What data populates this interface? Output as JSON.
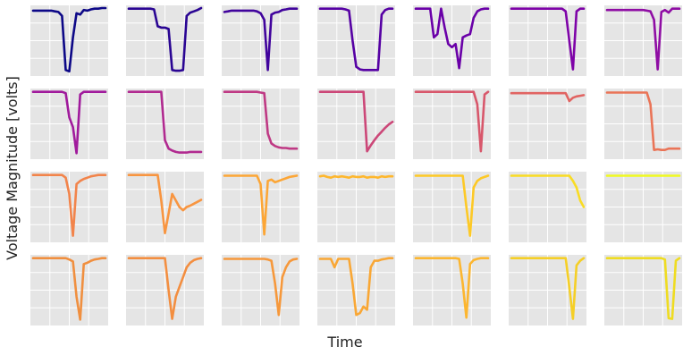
{
  "chart_data": {
    "type": "line",
    "xlabel": "Time",
    "ylabel": "Voltage Magnitude [volts]",
    "rows": 4,
    "cols": 7,
    "panel_background": "#e5e5e5",
    "grid_color": "#ffffff",
    "grid": true,
    "x": [
      0.0,
      0.05,
      0.1,
      0.15,
      0.2,
      0.25,
      0.3,
      0.35,
      0.4,
      0.45,
      0.5,
      0.55,
      0.6,
      0.65,
      0.7,
      0.75,
      0.8,
      0.85,
      0.9,
      0.95,
      1.0
    ],
    "ylim": [
      0,
      1
    ],
    "series": [
      {
        "color": "#0d0887",
        "values": [
          0.96,
          0.96,
          0.96,
          0.96,
          0.96,
          0.96,
          0.95,
          0.94,
          0.88,
          0.05,
          0.03,
          0.55,
          0.92,
          0.9,
          0.97,
          0.96,
          0.98,
          0.99,
          0.99,
          1.0,
          1.0
        ]
      },
      {
        "color": "#2a0593",
        "values": [
          0.99,
          0.99,
          0.99,
          0.99,
          0.99,
          0.99,
          0.99,
          0.98,
          0.72,
          0.7,
          0.7,
          0.68,
          0.05,
          0.04,
          0.04,
          0.05,
          0.88,
          0.93,
          0.95,
          0.97,
          1.0
        ]
      },
      {
        "color": "#41049d",
        "values": [
          0.94,
          0.95,
          0.96,
          0.96,
          0.96,
          0.96,
          0.96,
          0.96,
          0.96,
          0.95,
          0.92,
          0.82,
          0.05,
          0.9,
          0.93,
          0.94,
          0.97,
          0.98,
          0.99,
          0.99,
          0.99
        ]
      },
      {
        "color": "#5601a4",
        "values": [
          0.99,
          0.99,
          0.99,
          0.99,
          0.99,
          0.99,
          0.99,
          0.98,
          0.96,
          0.5,
          0.1,
          0.06,
          0.05,
          0.05,
          0.05,
          0.05,
          0.05,
          0.9,
          0.97,
          0.99,
          0.99
        ]
      },
      {
        "color": "#6a00a8",
        "values": [
          0.99,
          0.99,
          0.99,
          0.99,
          0.99,
          0.55,
          0.6,
          0.99,
          0.7,
          0.45,
          0.4,
          0.45,
          0.08,
          0.55,
          0.58,
          0.6,
          0.85,
          0.95,
          0.98,
          0.99,
          0.99
        ]
      },
      {
        "color": "#7e03a8",
        "values": [
          0.99,
          0.99,
          0.99,
          0.99,
          0.99,
          0.99,
          0.99,
          0.99,
          0.99,
          0.99,
          0.99,
          0.99,
          0.99,
          0.99,
          0.99,
          0.95,
          0.5,
          0.06,
          0.95,
          0.99,
          0.99
        ]
      },
      {
        "color": "#8f0da4",
        "values": [
          0.97,
          0.97,
          0.97,
          0.97,
          0.97,
          0.97,
          0.97,
          0.97,
          0.97,
          0.97,
          0.97,
          0.96,
          0.95,
          0.82,
          0.06,
          0.94,
          0.97,
          0.93,
          0.99,
          0.99,
          0.99
        ]
      },
      {
        "color": "#a01a9c",
        "values": [
          0.99,
          0.99,
          0.99,
          0.99,
          0.99,
          0.99,
          0.99,
          0.99,
          0.99,
          0.97,
          0.6,
          0.45,
          0.05,
          0.95,
          0.99,
          0.99,
          0.99,
          0.99,
          0.99,
          0.99,
          0.99
        ]
      },
      {
        "color": "#b12a90",
        "values": [
          0.99,
          0.99,
          0.99,
          0.99,
          0.99,
          0.99,
          0.99,
          0.99,
          0.99,
          0.99,
          0.25,
          0.12,
          0.09,
          0.07,
          0.06,
          0.06,
          0.06,
          0.07,
          0.07,
          0.07,
          0.07
        ]
      },
      {
        "color": "#bf3984",
        "values": [
          0.99,
          0.99,
          0.99,
          0.99,
          0.99,
          0.99,
          0.99,
          0.99,
          0.99,
          0.99,
          0.98,
          0.97,
          0.35,
          0.2,
          0.16,
          0.14,
          0.13,
          0.13,
          0.12,
          0.12,
          0.12
        ]
      },
      {
        "color": "#cc4778",
        "values": [
          0.99,
          0.99,
          0.99,
          0.99,
          0.99,
          0.99,
          0.99,
          0.99,
          0.99,
          0.99,
          0.99,
          0.99,
          0.99,
          0.08,
          0.17,
          0.25,
          0.32,
          0.38,
          0.44,
          0.49,
          0.53
        ]
      },
      {
        "color": "#d8576b",
        "values": [
          0.99,
          0.99,
          0.99,
          0.99,
          0.99,
          0.99,
          0.99,
          0.99,
          0.99,
          0.99,
          0.99,
          0.99,
          0.99,
          0.99,
          0.99,
          0.99,
          0.99,
          0.8,
          0.08,
          0.95,
          0.99
        ]
      },
      {
        "color": "#e16462",
        "values": [
          0.97,
          0.97,
          0.97,
          0.97,
          0.97,
          0.97,
          0.97,
          0.97,
          0.97,
          0.97,
          0.97,
          0.97,
          0.97,
          0.97,
          0.97,
          0.97,
          0.85,
          0.9,
          0.92,
          0.93,
          0.94
        ]
      },
      {
        "color": "#ea7457",
        "values": [
          0.98,
          0.98,
          0.98,
          0.98,
          0.98,
          0.98,
          0.98,
          0.98,
          0.98,
          0.98,
          0.98,
          0.98,
          0.8,
          0.1,
          0.11,
          0.1,
          0.1,
          0.12,
          0.12,
          0.12,
          0.12
        ]
      },
      {
        "color": "#f2844b",
        "values": [
          0.99,
          0.99,
          0.99,
          0.99,
          0.99,
          0.99,
          0.99,
          0.99,
          0.99,
          0.95,
          0.7,
          0.06,
          0.85,
          0.9,
          0.93,
          0.95,
          0.97,
          0.98,
          0.99,
          0.99,
          0.99
        ]
      },
      {
        "color": "#f89540",
        "values": [
          0.99,
          0.99,
          0.99,
          0.99,
          0.99,
          0.99,
          0.99,
          0.99,
          0.99,
          0.6,
          0.1,
          0.4,
          0.7,
          0.6,
          0.5,
          0.45,
          0.5,
          0.52,
          0.55,
          0.58,
          0.61
        ]
      },
      {
        "color": "#fca636",
        "values": [
          0.98,
          0.98,
          0.98,
          0.98,
          0.98,
          0.98,
          0.98,
          0.98,
          0.98,
          0.98,
          0.85,
          0.08,
          0.9,
          0.92,
          0.88,
          0.9,
          0.92,
          0.94,
          0.96,
          0.97,
          0.98
        ]
      },
      {
        "color": "#feb72d",
        "values": [
          0.97,
          0.98,
          0.96,
          0.95,
          0.97,
          0.96,
          0.97,
          0.96,
          0.95,
          0.97,
          0.96,
          0.96,
          0.97,
          0.95,
          0.96,
          0.96,
          0.95,
          0.97,
          0.96,
          0.97,
          0.97
        ]
      },
      {
        "color": "#fdc926",
        "values": [
          0.98,
          0.98,
          0.98,
          0.98,
          0.98,
          0.98,
          0.98,
          0.98,
          0.98,
          0.98,
          0.98,
          0.98,
          0.98,
          0.98,
          0.5,
          0.06,
          0.8,
          0.9,
          0.94,
          0.96,
          0.98
        ]
      },
      {
        "color": "#f9dc24",
        "values": [
          0.98,
          0.98,
          0.98,
          0.98,
          0.98,
          0.98,
          0.98,
          0.98,
          0.98,
          0.98,
          0.98,
          0.98,
          0.98,
          0.98,
          0.98,
          0.98,
          0.98,
          0.9,
          0.8,
          0.6,
          0.5
        ]
      },
      {
        "color": "#f0f921",
        "values": [
          0.98,
          0.98,
          0.98,
          0.98,
          0.98,
          0.98,
          0.98,
          0.98,
          0.98,
          0.98,
          0.98,
          0.98,
          0.98,
          0.98,
          0.98,
          0.98,
          0.98,
          0.98,
          0.98,
          0.98,
          0.98
        ]
      },
      {
        "color": "#f08f3f",
        "values": [
          0.99,
          0.99,
          0.99,
          0.99,
          0.99,
          0.99,
          0.99,
          0.99,
          0.99,
          0.99,
          0.97,
          0.94,
          0.4,
          0.05,
          0.9,
          0.92,
          0.95,
          0.97,
          0.98,
          0.99,
          0.99
        ]
      },
      {
        "color": "#f38e40",
        "values": [
          0.99,
          0.99,
          0.99,
          0.99,
          0.99,
          0.99,
          0.99,
          0.99,
          0.99,
          0.99,
          0.99,
          0.5,
          0.06,
          0.4,
          0.55,
          0.7,
          0.85,
          0.92,
          0.96,
          0.98,
          0.99
        ]
      },
      {
        "color": "#f6983b",
        "values": [
          0.98,
          0.98,
          0.98,
          0.98,
          0.98,
          0.98,
          0.98,
          0.98,
          0.98,
          0.98,
          0.98,
          0.98,
          0.97,
          0.95,
          0.6,
          0.12,
          0.7,
          0.85,
          0.94,
          0.97,
          0.98
        ]
      },
      {
        "color": "#f9a735",
        "values": [
          0.98,
          0.98,
          0.98,
          0.98,
          0.85,
          0.98,
          0.98,
          0.98,
          0.98,
          0.6,
          0.12,
          0.15,
          0.25,
          0.2,
          0.85,
          0.95,
          0.95,
          0.97,
          0.98,
          0.99,
          0.99
        ]
      },
      {
        "color": "#fcb630",
        "values": [
          0.99,
          0.99,
          0.99,
          0.99,
          0.99,
          0.99,
          0.99,
          0.99,
          0.99,
          0.99,
          0.99,
          0.99,
          0.98,
          0.6,
          0.08,
          0.9,
          0.96,
          0.98,
          0.99,
          0.99,
          0.99
        ]
      },
      {
        "color": "#f5cf26",
        "values": [
          0.99,
          0.99,
          0.99,
          0.99,
          0.99,
          0.99,
          0.99,
          0.99,
          0.99,
          0.99,
          0.99,
          0.99,
          0.99,
          0.99,
          0.99,
          0.99,
          0.55,
          0.06,
          0.88,
          0.95,
          0.99
        ]
      },
      {
        "color": "#efdc21",
        "values": [
          0.99,
          0.99,
          0.99,
          0.99,
          0.99,
          0.99,
          0.99,
          0.99,
          0.99,
          0.99,
          0.99,
          0.99,
          0.99,
          0.99,
          0.99,
          0.99,
          0.97,
          0.07,
          0.06,
          0.95,
          0.99
        ]
      }
    ]
  }
}
